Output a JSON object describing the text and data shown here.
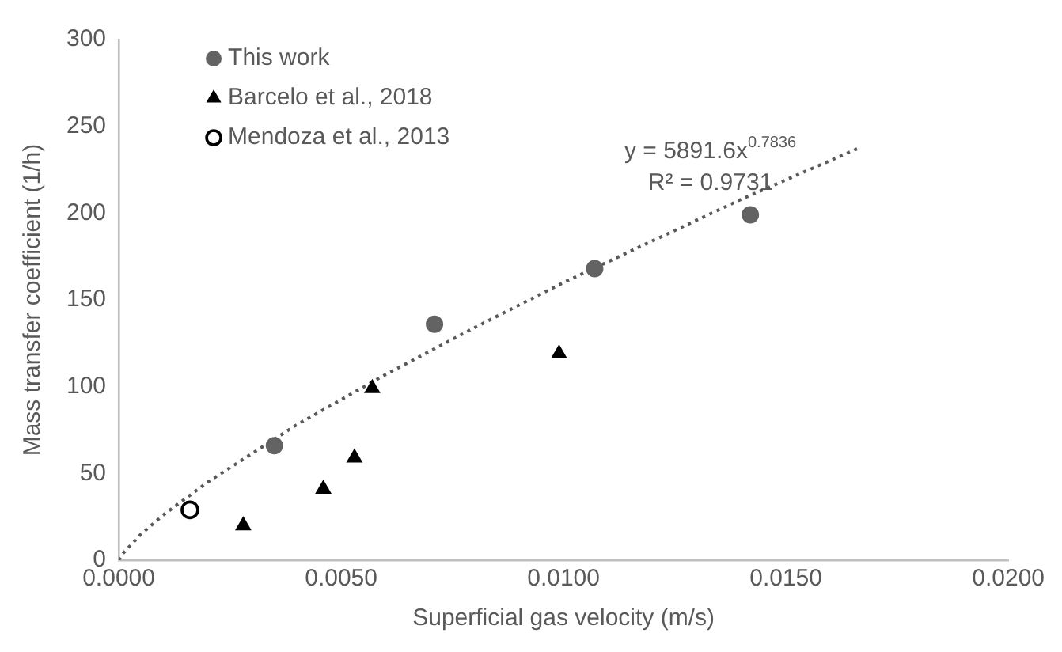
{
  "chart_data": {
    "type": "scatter",
    "xlabel": "Superficial gas velocity (m/s)",
    "ylabel": "Mass transfer coefficient (1/h)",
    "xlim": [
      0,
      0.02
    ],
    "xticks": [
      {
        "value": 0,
        "label": "0.0000"
      },
      {
        "value": 0.005,
        "label": "0.0050"
      },
      {
        "value": 0.01,
        "label": "0.0100"
      },
      {
        "value": 0.015,
        "label": "0.0150"
      },
      {
        "value": 0.02,
        "label": "0.0200"
      }
    ],
    "ylim": [
      0,
      300
    ],
    "yticks": [
      0,
      50,
      100,
      150,
      200,
      250,
      300
    ],
    "grid": false,
    "legend": "top left",
    "series": [
      {
        "name": "This work",
        "color": "#636363",
        "marker": "circle",
        "x": [
          0.0035,
          0.0071,
          0.0107,
          0.0142
        ],
        "values": [
          66,
          136,
          168,
          199
        ]
      },
      {
        "name": "Barcelo et al., 2018",
        "color": "#000000",
        "marker": "triangle",
        "x": [
          0.0028,
          0.0046,
          0.0053,
          0.0057,
          0.0099
        ],
        "values": [
          20,
          41,
          59,
          99,
          119
        ]
      },
      {
        "name": "Mendoza et al., 2013",
        "color": "#ffffff",
        "marker": "circle",
        "x": [
          0.0016
        ],
        "values": [
          29
        ]
      },
      {
        "type": "line",
        "color": "#595959",
        "line_style": "dotted",
        "marker": "none",
        "x": [
          0,
          0.0001,
          0.0005,
          0.001,
          0.002,
          0.004,
          0.006,
          0.008,
          0.01,
          0.012,
          0.014,
          0.0166
        ],
        "values": [
          0,
          4,
          15,
          26,
          45,
          78,
          107,
          134,
          160,
          184,
          208,
          237
        ]
      }
    ],
    "annotations": [
      "y = 5891.6x$^{0.7836}$",
      "R² = 0.9731"
    ]
  }
}
